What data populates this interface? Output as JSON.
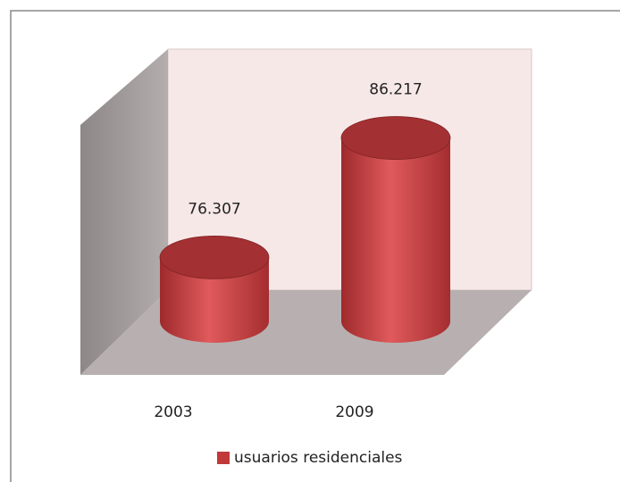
{
  "chart_data": {
    "type": "bar3d",
    "categories": [
      "2003",
      "2009"
    ],
    "series": [
      {
        "name": "usuarios residenciales",
        "color": "#c0393b",
        "values": [
          76307,
          86217
        ],
        "value_labels": [
          "76.307",
          "86.217"
        ]
      }
    ],
    "ylim": [
      71000,
      91000
    ],
    "legend": "bottom"
  }
}
